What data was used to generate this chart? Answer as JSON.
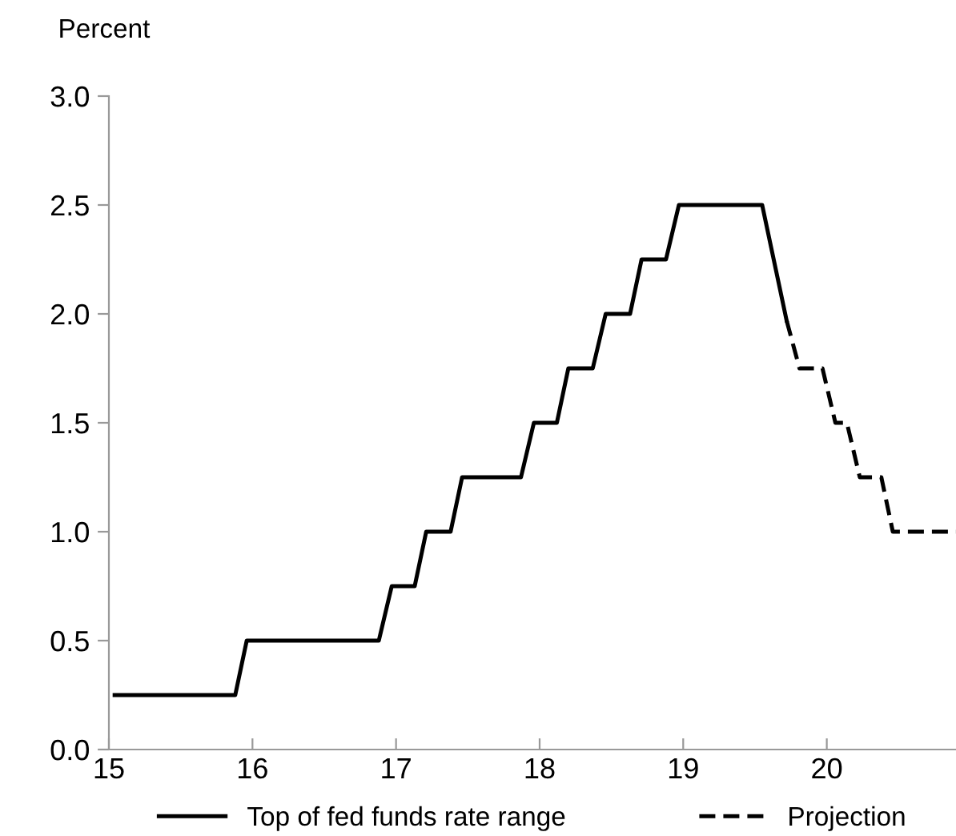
{
  "chart_data": {
    "type": "line",
    "ylabel": "Percent",
    "series": [
      {
        "name": "Top of fed funds rate range",
        "color": "#000000",
        "line_style": "solid",
        "x": [
          15.04,
          15.88,
          15.96,
          16.88,
          16.97,
          17.13,
          17.21,
          17.38,
          17.46,
          17.87,
          17.96,
          18.12,
          18.2,
          18.37,
          18.46,
          18.63,
          18.71,
          18.88,
          18.97,
          19.55,
          19.72
        ],
        "values": [
          0.25,
          0.25,
          0.5,
          0.5,
          0.75,
          0.75,
          1.0,
          1.0,
          1.25,
          1.25,
          1.5,
          1.5,
          1.75,
          1.75,
          2.0,
          2.0,
          2.25,
          2.25,
          2.5,
          2.5,
          1.97
        ]
      },
      {
        "name": "Projection",
        "color": "#000000",
        "line_style": "dashed",
        "x": [
          19.72,
          19.81,
          19.97,
          20.06,
          20.14,
          20.23,
          20.38,
          20.46,
          20.9
        ],
        "values": [
          1.97,
          1.75,
          1.75,
          1.5,
          1.5,
          1.25,
          1.25,
          1.0,
          1.0
        ]
      }
    ],
    "xlim": [
      15,
      20.9
    ],
    "xticks": [
      15,
      16,
      17,
      18,
      19,
      20
    ],
    "ylim": [
      0,
      3
    ],
    "yticks": [
      {
        "value": 0,
        "label": "0.0"
      },
      {
        "value": 0.5,
        "label": "0.5"
      },
      {
        "value": 1,
        "label": "1.0"
      },
      {
        "value": 1.5,
        "label": "1.5"
      },
      {
        "value": 2,
        "label": "2.0"
      },
      {
        "value": 2.5,
        "label": "2.5"
      },
      {
        "value": 3,
        "label": "3.0"
      }
    ],
    "grid": false,
    "legend": "bottom",
    "marker": "none"
  }
}
